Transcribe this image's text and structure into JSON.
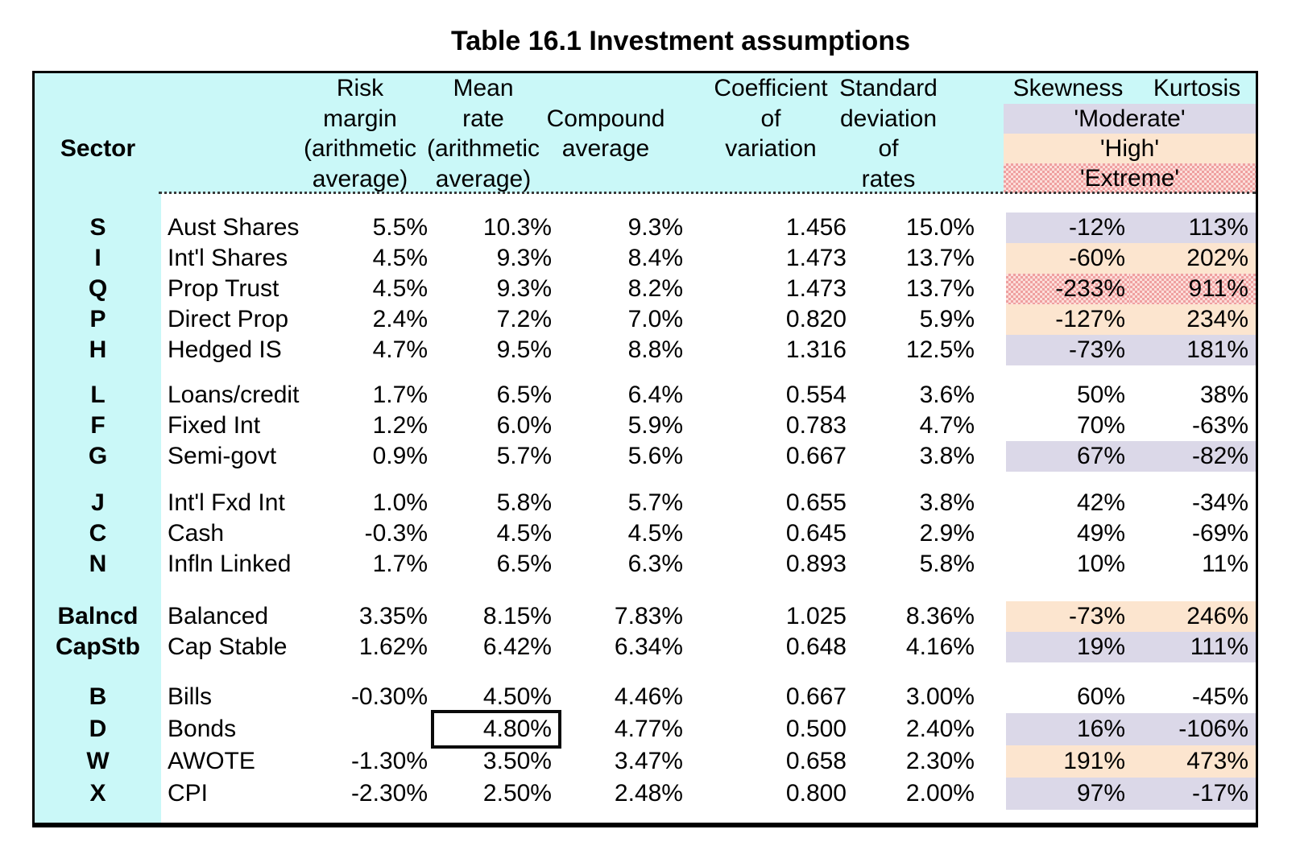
{
  "title": "Table 16.1 Investment assumptions",
  "colors": {
    "header_bg": "#caf8f8",
    "band_moderate": "#dbd8e8",
    "band_high": "#fce5cf",
    "extreme_dot": "#efa0a0",
    "extreme_base": "#fcdeda",
    "border": "#000000",
    "text": "#000000"
  },
  "header": {
    "sector": "Sector",
    "risk": [
      "Risk",
      "margin",
      "(arithmetic",
      "average)"
    ],
    "mean": [
      "Mean",
      "rate",
      "(arithmetic",
      "average)"
    ],
    "compound": [
      "Compound",
      "average"
    ],
    "cov": [
      "Coefficient",
      "of",
      "variation"
    ],
    "sd": [
      "Standard",
      "deviation",
      "of",
      "rates"
    ],
    "skewness": "Skewness",
    "kurtosis": "Kurtosis",
    "bands": [
      "'Moderate'",
      "'High'",
      "'Extreme'"
    ]
  },
  "table": {
    "groups": [
      {
        "rows": [
          {
            "code": "S",
            "name": "Aust Shares",
            "risk": "5.5%",
            "mean": "10.3%",
            "compound": "9.3%",
            "cov": "1.456",
            "sd": "15.0%",
            "skew": "-12%",
            "kurt": "113%",
            "band": "moderate"
          },
          {
            "code": "I",
            "name": "Int'l Shares",
            "risk": "4.5%",
            "mean": "9.3%",
            "compound": "8.4%",
            "cov": "1.473",
            "sd": "13.7%",
            "skew": "-60%",
            "kurt": "202%",
            "band": "high"
          },
          {
            "code": "Q",
            "name": "Prop Trust",
            "risk": "4.5%",
            "mean": "9.3%",
            "compound": "8.2%",
            "cov": "1.473",
            "sd": "13.7%",
            "skew": "-233%",
            "kurt": "911%",
            "band": "extreme"
          },
          {
            "code": "P",
            "name": "Direct Prop",
            "risk": "2.4%",
            "mean": "7.2%",
            "compound": "7.0%",
            "cov": "0.820",
            "sd": "5.9%",
            "skew": "-127%",
            "kurt": "234%",
            "band": "high"
          },
          {
            "code": "H",
            "name": "Hedged IS",
            "risk": "4.7%",
            "mean": "9.5%",
            "compound": "8.8%",
            "cov": "1.316",
            "sd": "12.5%",
            "skew": "-73%",
            "kurt": "181%",
            "band": "moderate"
          }
        ]
      },
      {
        "rows": [
          {
            "code": "L",
            "name": "Loans/credit",
            "risk": "1.7%",
            "mean": "6.5%",
            "compound": "6.4%",
            "cov": "0.554",
            "sd": "3.6%",
            "skew": "50%",
            "kurt": "38%",
            "band": "none"
          },
          {
            "code": "F",
            "name": "Fixed Int",
            "risk": "1.2%",
            "mean": "6.0%",
            "compound": "5.9%",
            "cov": "0.783",
            "sd": "4.7%",
            "skew": "70%",
            "kurt": "-63%",
            "band": "none"
          },
          {
            "code": "G",
            "name": "Semi-govt",
            "risk": "0.9%",
            "mean": "5.7%",
            "compound": "5.6%",
            "cov": "0.667",
            "sd": "3.8%",
            "skew": "67%",
            "kurt": "-82%",
            "band": "moderate"
          }
        ]
      },
      {
        "rows": [
          {
            "code": "J",
            "name": "Int'l Fxd Int",
            "risk": "1.0%",
            "mean": "5.8%",
            "compound": "5.7%",
            "cov": "0.655",
            "sd": "3.8%",
            "skew": "42%",
            "kurt": "-34%",
            "band": "none"
          },
          {
            "code": "C",
            "name": "Cash",
            "risk": "-0.3%",
            "mean": "4.5%",
            "compound": "4.5%",
            "cov": "0.645",
            "sd": "2.9%",
            "skew": "49%",
            "kurt": "-69%",
            "band": "none"
          },
          {
            "code": "N",
            "name": "Infln Linked",
            "risk": "1.7%",
            "mean": "6.5%",
            "compound": "6.3%",
            "cov": "0.893",
            "sd": "5.8%",
            "skew": "10%",
            "kurt": "11%",
            "band": "none"
          }
        ]
      },
      {
        "rows": [
          {
            "code": "Balncd",
            "name": "Balanced",
            "risk": "3.35%",
            "mean": "8.15%",
            "compound": "7.83%",
            "cov": "1.025",
            "sd": "8.36%",
            "skew": "-73%",
            "kurt": "246%",
            "band": "high"
          },
          {
            "code": "CapStb",
            "name": "Cap Stable",
            "risk": "1.62%",
            "mean": "6.42%",
            "compound": "6.34%",
            "cov": "0.648",
            "sd": "4.16%",
            "skew": "19%",
            "kurt": "111%",
            "band": "moderate"
          }
        ]
      },
      {
        "rows": [
          {
            "code": "B",
            "name": "Bills",
            "risk": "-0.30%",
            "mean": "4.50%",
            "compound": "4.46%",
            "cov": "0.667",
            "sd": "3.00%",
            "skew": "60%",
            "kurt": "-45%",
            "band": "none"
          },
          {
            "code": "D",
            "name": "Bonds",
            "risk": "",
            "mean": "4.80%",
            "compound": "4.77%",
            "cov": "0.500",
            "sd": "2.40%",
            "skew": "16%",
            "kurt": "-106%",
            "band": "moderate",
            "boxed": true
          },
          {
            "code": "W",
            "name": "AWOTE",
            "risk": "-1.30%",
            "mean": "3.50%",
            "compound": "3.47%",
            "cov": "0.658",
            "sd": "2.30%",
            "skew": "191%",
            "kurt": "473%",
            "band": "high"
          },
          {
            "code": "X",
            "name": "CPI",
            "risk": "-2.30%",
            "mean": "2.50%",
            "compound": "2.48%",
            "cov": "0.800",
            "sd": "2.00%",
            "skew": "97%",
            "kurt": "-17%",
            "band": "moderate"
          }
        ]
      }
    ]
  }
}
